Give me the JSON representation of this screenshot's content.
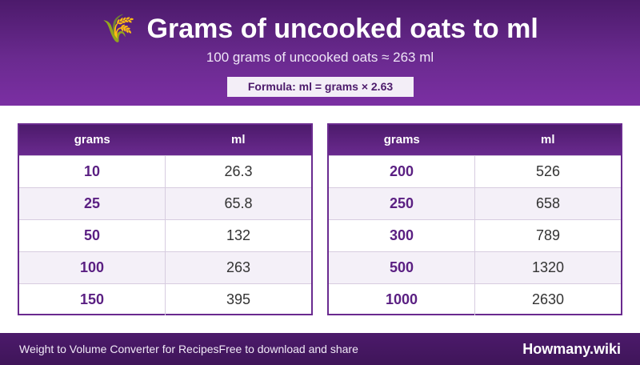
{
  "header": {
    "icon": "🌾",
    "icon_name": "wheat-icon",
    "title": "Grams of uncooked oats to ml",
    "subtitle": "100 grams of uncooked oats ≈ 263 ml",
    "formula": "Formula: ml = grams × 2.63"
  },
  "tables": {
    "left": {
      "col1": "grams",
      "col2": "ml",
      "rows": [
        {
          "grams": "10",
          "ml": "26.3"
        },
        {
          "grams": "25",
          "ml": "65.8"
        },
        {
          "grams": "50",
          "ml": "132"
        },
        {
          "grams": "100",
          "ml": "263"
        },
        {
          "grams": "150",
          "ml": "395"
        }
      ]
    },
    "right": {
      "col1": "grams",
      "col2": "ml",
      "rows": [
        {
          "grams": "200",
          "ml": "526"
        },
        {
          "grams": "250",
          "ml": "658"
        },
        {
          "grams": "300",
          "ml": "789"
        },
        {
          "grams": "500",
          "ml": "1320"
        },
        {
          "grams": "1000",
          "ml": "2630"
        }
      ]
    }
  },
  "footer": {
    "left_a": "Weight to Volume Converter for Recipes",
    "left_b": "Free to download and share",
    "brand": "Howmany.wiki"
  },
  "colors": {
    "primary": "#6a2a8f",
    "dark": "#4c1a6b",
    "alt_row": "#f4f0f8"
  }
}
